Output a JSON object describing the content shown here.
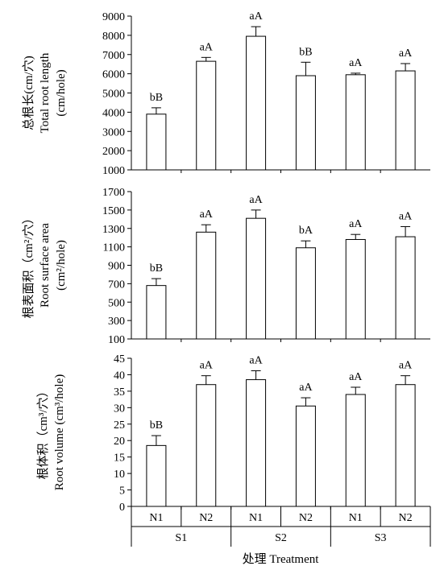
{
  "chart_data": [
    {
      "type": "bar",
      "ylabel_line1": "总根长(cm/穴)",
      "ylabel_line2": "Total root length",
      "ylabel_line3": "(cm/hole)",
      "ylim": [
        1000,
        9000
      ],
      "yticks": [
        "1000",
        "2000",
        "3000",
        "4000",
        "5000",
        "6000",
        "7000",
        "8000",
        "9000"
      ],
      "categories": [
        "N1",
        "N2",
        "N1",
        "N2",
        "N1",
        "N2"
      ],
      "groups": [
        "S1",
        "S2",
        "S3"
      ],
      "values": [
        3900,
        6650,
        7950,
        5900,
        5950,
        6150
      ],
      "errors": [
        330,
        200,
        500,
        700,
        80,
        380
      ],
      "labels": [
        "bB",
        "aA",
        "aA",
        "bB",
        "aA",
        "aA"
      ]
    },
    {
      "type": "bar",
      "ylabel_line1": "根表面积（cm²/穴）",
      "ylabel_line2": "Root surface area",
      "ylabel_line3": "(cm²/hole)",
      "ylim": [
        100,
        1700
      ],
      "yticks": [
        "100",
        "300",
        "500",
        "700",
        "900",
        "1100",
        "1300",
        "1500",
        "1700"
      ],
      "categories": [
        "N1",
        "N2",
        "N1",
        "N2",
        "N1",
        "N2"
      ],
      "groups": [
        "S1",
        "S2",
        "S3"
      ],
      "values": [
        680,
        1260,
        1410,
        1090,
        1180,
        1210
      ],
      "errors": [
        75,
        80,
        90,
        75,
        55,
        110
      ],
      "labels": [
        "bB",
        "aA",
        "aA",
        "bA",
        "aA",
        "aA"
      ]
    },
    {
      "type": "bar",
      "ylabel_line1": "根体积（cm³/穴）",
      "ylabel_line2": "Root volume (cm³/hole)",
      "ylabel_line3": "",
      "ylim": [
        0,
        45
      ],
      "yticks": [
        "0",
        "5",
        "10",
        "15",
        "20",
        "25",
        "30",
        "35",
        "40",
        "45"
      ],
      "categories": [
        "N1",
        "N2",
        "N1",
        "N2",
        "N1",
        "N2"
      ],
      "groups": [
        "S1",
        "S2",
        "S3"
      ],
      "values": [
        18.5,
        37,
        38.5,
        30.5,
        34,
        37
      ],
      "errors": [
        3,
        2.7,
        2.7,
        2.5,
        2.2,
        2.7
      ],
      "labels": [
        "bB",
        "aA",
        "aA",
        "aA",
        "aA",
        "aA"
      ]
    }
  ],
  "xaxis_title": "处理 Treatment",
  "colors": {
    "bar_fill": "#ffffff",
    "stroke": "#000000"
  }
}
